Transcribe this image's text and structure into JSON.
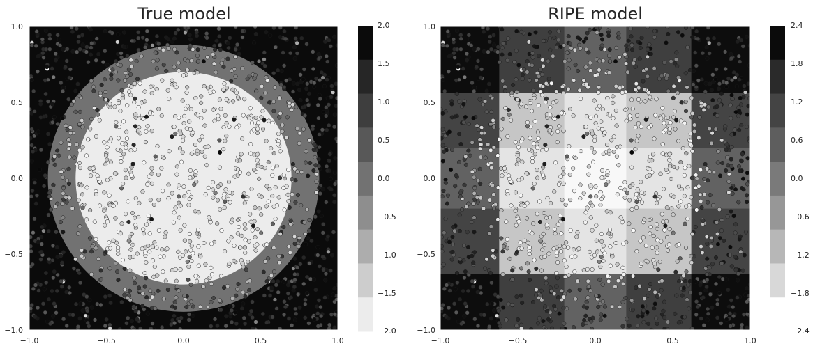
{
  "chart_data": [
    {
      "type": "heatmap",
      "title": "True model",
      "xlim": [
        -1.0,
        1.0
      ],
      "ylim": [
        -1.0,
        1.0
      ],
      "xticks": [
        "−1.0",
        "−0.5",
        "0.0",
        "0.5",
        "1.0"
      ],
      "yticks": [
        "1.0",
        "0.5",
        "0.0",
        "−0.5",
        "−1.0"
      ],
      "grid": false,
      "regions": [
        {
          "shape": "background",
          "value": 2.0
        },
        {
          "shape": "circle",
          "center": [
            0.0,
            0.0
          ],
          "radius": 0.88,
          "value": 0.0
        },
        {
          "shape": "circle",
          "center": [
            0.0,
            0.0
          ],
          "radius": 0.7,
          "value": -2.0
        }
      ],
      "scatter": {
        "n_points": 1500,
        "description_color": "point value on same colormap"
      },
      "colorbar": {
        "ticks": [
          "2.0",
          "1.5",
          "1.0",
          "0.5",
          "0.0",
          "−0.5",
          "−1.0",
          "−1.5",
          "−2.0"
        ],
        "levels": [
          "#0b0b0b",
          "#262626",
          "#3e3e3e",
          "#585858",
          "#727272",
          "#8e8e8e",
          "#adadad",
          "#cdcdcd",
          "#ececec"
        ]
      }
    },
    {
      "type": "heatmap",
      "title": "RIPE model",
      "xlim": [
        -1.0,
        1.0
      ],
      "ylim": [
        -1.0,
        1.0
      ],
      "xticks": [
        "−1.0",
        "−0.5",
        "0.0",
        "0.5",
        "1.0"
      ],
      "yticks": [
        "1.0",
        "0.5",
        "0.0",
        "−0.5",
        "−1.0"
      ],
      "grid": false,
      "x_edges": [
        -1.0,
        -0.62,
        -0.2,
        0.2,
        0.62,
        1.0
      ],
      "y_edges": [
        1.0,
        0.56,
        0.2,
        -0.2,
        -0.63,
        -1.0
      ],
      "cells": [
        [
          2.3,
          1.3,
          0.6,
          1.3,
          2.3
        ],
        [
          1.2,
          -1.4,
          -2.0,
          -1.4,
          1.2
        ],
        [
          0.6,
          -2.0,
          -2.4,
          -2.0,
          0.6
        ],
        [
          1.2,
          -1.4,
          -2.0,
          -1.4,
          1.2
        ],
        [
          2.3,
          1.3,
          0.6,
          1.3,
          2.3
        ]
      ],
      "scatter": {
        "n_points": 1500,
        "description_color": "point value on same colormap"
      },
      "colorbar": {
        "ticks": [
          "2.4",
          "1.8",
          "1.2",
          "0.6",
          "0.0",
          "−0.6",
          "−1.2",
          "−1.8",
          "−2.4"
        ],
        "levels": [
          "#0b0b0b",
          "#2a2a2a",
          "#444444",
          "#5e5e5e",
          "#7a7a7a",
          "#979797",
          "#b7b7b7",
          "#d8d8d8",
          "#ffffff"
        ]
      }
    }
  ]
}
